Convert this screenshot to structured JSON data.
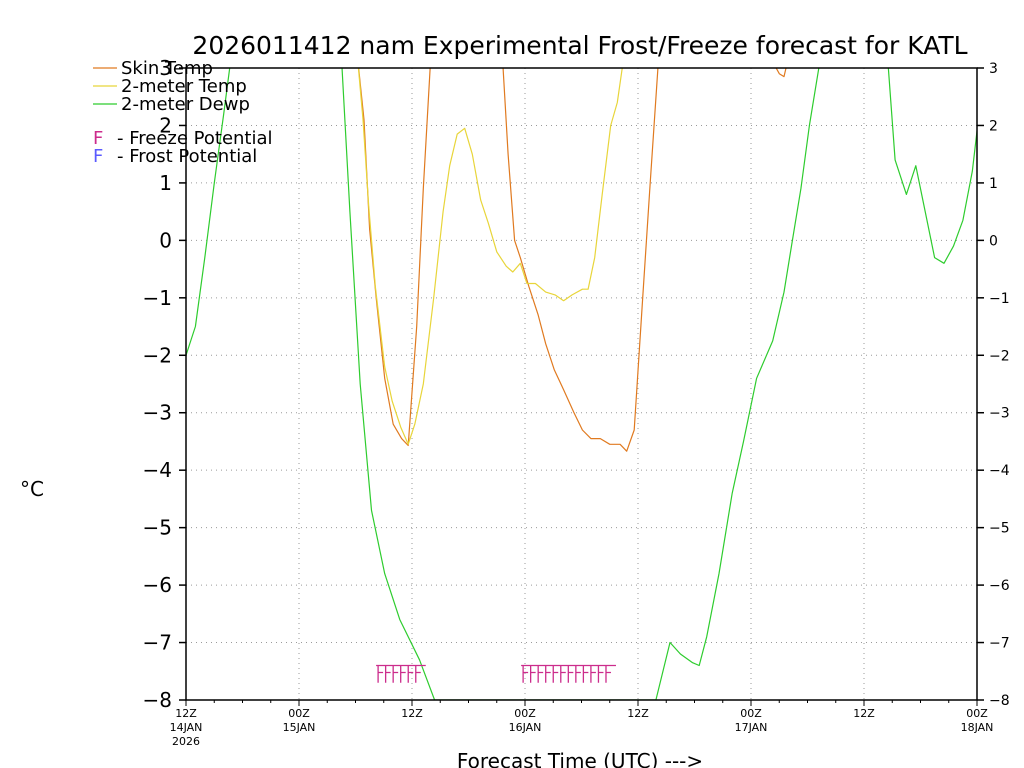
{
  "chart_data": {
    "type": "line",
    "title": "2026011412 nam Experimental Frost/Freeze forecast for KATL",
    "ylabel": "°C",
    "xlabel": "Forecast Time (UTC) --->",
    "ylim": [
      -8,
      3
    ],
    "xlim_hours": [
      0,
      84
    ],
    "yticks": [
      3,
      2,
      1,
      0,
      -1,
      -2,
      -3,
      -4,
      -5,
      -6,
      -7,
      -8
    ],
    "xticks": [
      {
        "hour": 0,
        "label": "12Z",
        "date": "14JAN",
        "year": "2026"
      },
      {
        "hour": 12,
        "label": "00Z",
        "date": "15JAN",
        "year": ""
      },
      {
        "hour": 24,
        "label": "12Z",
        "date": "",
        "year": ""
      },
      {
        "hour": 36,
        "label": "00Z",
        "date": "16JAN",
        "year": ""
      },
      {
        "hour": 48,
        "label": "12Z",
        "date": "",
        "year": ""
      },
      {
        "hour": 60,
        "label": "00Z",
        "date": "17JAN",
        "year": ""
      },
      {
        "hour": 72,
        "label": "12Z",
        "date": "",
        "year": ""
      },
      {
        "hour": 84,
        "label": "00Z",
        "date": "18JAN",
        "year": ""
      }
    ],
    "series": [
      {
        "name": "Skin Temp",
        "color": "#e07a20",
        "points": [
          [
            18.2,
            3.2
          ],
          [
            18.9,
            2.1
          ],
          [
            19.5,
            0.2
          ],
          [
            20.2,
            -1.0
          ],
          [
            21.1,
            -2.4
          ],
          [
            22,
            -3.2
          ],
          [
            22.9,
            -3.45
          ],
          [
            23.6,
            -3.57
          ],
          [
            24.5,
            -1.5
          ],
          [
            25.2,
            0.9
          ],
          [
            26,
            3.2
          ],
          [
            33.6,
            3.2
          ],
          [
            34.2,
            1.5
          ],
          [
            34.9,
            0
          ],
          [
            35.5,
            -0.3
          ],
          [
            36.4,
            -0.8
          ],
          [
            37.4,
            -1.3
          ],
          [
            38.2,
            -1.8
          ],
          [
            39.1,
            -2.25
          ],
          [
            40.1,
            -2.6
          ],
          [
            41.2,
            -3.0
          ],
          [
            42.1,
            -3.3
          ],
          [
            43,
            -3.45
          ],
          [
            44,
            -3.45
          ],
          [
            45,
            -3.55
          ],
          [
            46.1,
            -3.55
          ],
          [
            46.8,
            -3.67
          ],
          [
            47.6,
            -3.3
          ],
          [
            48.5,
            -1.0
          ],
          [
            49.3,
            1.0
          ],
          [
            50.2,
            3.2
          ]
        ],
        "extra_segments": [
          [
            [
              62,
              3.2
            ],
            [
              63,
              2.9
            ],
            [
              63.5,
              2.85
            ],
            [
              64,
              3.2
            ]
          ]
        ]
      },
      {
        "name": "2-meter Temp",
        "color": "#e8d53a",
        "points": [
          [
            18.2,
            3.2
          ],
          [
            18.8,
            2.1
          ],
          [
            19.4,
            0.6
          ],
          [
            20.1,
            -0.8
          ],
          [
            21.1,
            -2.2
          ],
          [
            21.9,
            -2.8
          ],
          [
            22.8,
            -3.25
          ],
          [
            23.6,
            -3.55
          ],
          [
            24.3,
            -3.2
          ],
          [
            25.2,
            -2.5
          ],
          [
            26.3,
            -1.0
          ],
          [
            27.3,
            0.5
          ],
          [
            28,
            1.3
          ],
          [
            28.8,
            1.85
          ],
          [
            29.6,
            1.95
          ],
          [
            30.4,
            1.5
          ],
          [
            31.3,
            0.7
          ],
          [
            32.1,
            0.3
          ],
          [
            33,
            -0.2
          ],
          [
            34,
            -0.45
          ],
          [
            34.7,
            -0.55
          ],
          [
            35.5,
            -0.4
          ],
          [
            36.2,
            -0.75
          ],
          [
            37.1,
            -0.75
          ],
          [
            38.2,
            -0.9
          ],
          [
            39.2,
            -0.95
          ],
          [
            40.1,
            -1.05
          ],
          [
            41,
            -0.95
          ],
          [
            42.1,
            -0.85
          ],
          [
            42.7,
            -0.85
          ],
          [
            43.4,
            -0.3
          ],
          [
            44.2,
            0.8
          ],
          [
            45.1,
            2.0
          ],
          [
            45.8,
            2.4
          ],
          [
            46.5,
            3.2
          ]
        ]
      },
      {
        "name": "2-meter Dewp",
        "color": "#2ecc2e",
        "points": [
          [
            0,
            -2.0
          ],
          [
            1,
            -1.5
          ],
          [
            2,
            -0.3
          ],
          [
            3,
            1.0
          ],
          [
            4,
            2.2
          ],
          [
            4.8,
            3.2
          ],
          [
            16.5,
            3.2
          ],
          [
            17.4,
            0.5
          ],
          [
            18.5,
            -2.5
          ],
          [
            19.7,
            -4.7
          ],
          [
            21.1,
            -5.8
          ],
          [
            22.7,
            -6.6
          ],
          [
            24.8,
            -7.3
          ],
          [
            26.4,
            -8
          ],
          [
            49.9,
            -8
          ],
          [
            51.4,
            -7.0
          ],
          [
            52.5,
            -7.2
          ],
          [
            53.8,
            -7.35
          ],
          [
            54.5,
            -7.4
          ],
          [
            55.3,
            -6.9
          ],
          [
            56.6,
            -5.8
          ],
          [
            58,
            -4.4
          ],
          [
            59.2,
            -3.5
          ],
          [
            60.6,
            -2.4
          ],
          [
            62.3,
            -1.75
          ],
          [
            63.5,
            -0.9
          ],
          [
            64.4,
            0
          ],
          [
            65.3,
            0.9
          ],
          [
            66.2,
            2.0
          ],
          [
            67.4,
            3.2
          ],
          [
            74.5,
            3.2
          ],
          [
            75.3,
            1.4
          ],
          [
            76.5,
            0.8
          ],
          [
            77.5,
            1.3
          ],
          [
            78.5,
            0.5
          ],
          [
            79.5,
            -0.3
          ],
          [
            80.5,
            -0.4
          ],
          [
            81.5,
            -0.1
          ],
          [
            82.5,
            0.35
          ],
          [
            83.5,
            1.2
          ],
          [
            84,
            1.9
          ]
        ]
      }
    ],
    "legend": [
      {
        "name": "Skin Temp",
        "color": "#e07a20"
      },
      {
        "name": "2-meter Temp",
        "color": "#e8d53a"
      },
      {
        "name": "2-meter Dewp",
        "color": "#2ecc2e"
      }
    ],
    "markers_legend": [
      {
        "letter": "F",
        "text": "- Freeze Potential",
        "color": "#cc2c8c"
      },
      {
        "letter": "F",
        "text": "- Frost Potential",
        "color": "#5a5aff"
      }
    ],
    "freeze_markers": {
      "color": "#cc2c8c",
      "hours": [
        20.4,
        21.2,
        22.0,
        22.8,
        23.6,
        24.4,
        35.8,
        36.6,
        37.4,
        38.2,
        39.0,
        39.8,
        40.6,
        41.4,
        42.2,
        43.0,
        43.8,
        44.6
      ]
    }
  }
}
